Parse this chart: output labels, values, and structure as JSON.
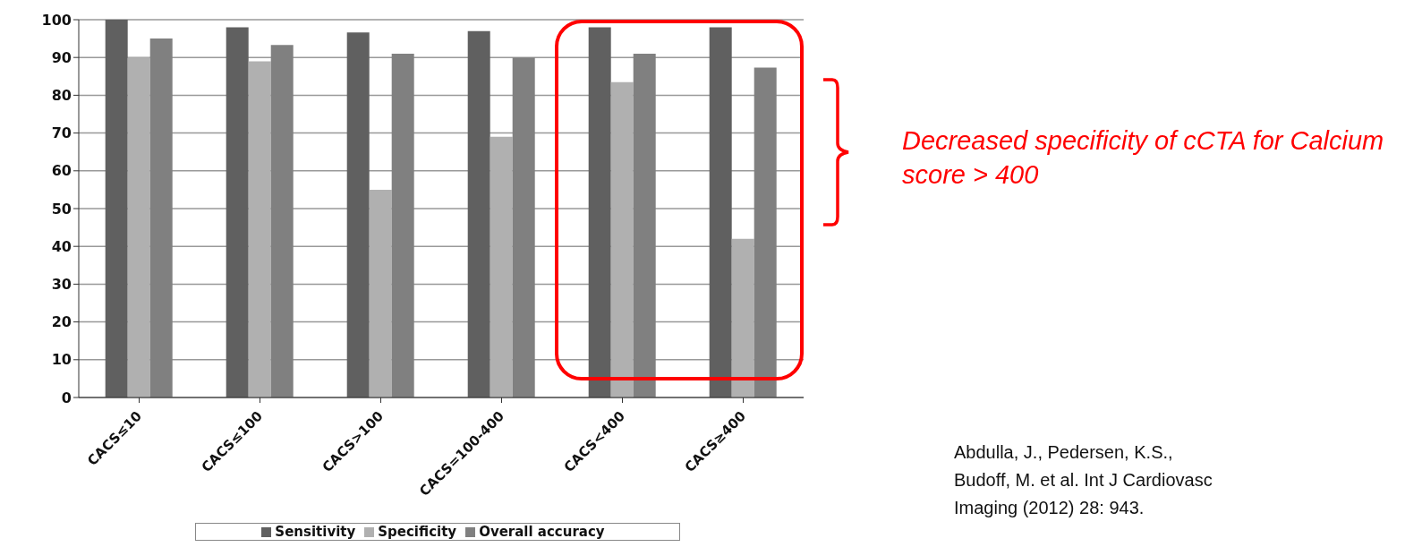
{
  "chart_data": {
    "type": "bar",
    "categories": [
      "CACS≤10",
      "CACS≤100",
      "CACS>100",
      "CACS=100-400",
      "CACS<400",
      "CACS≥400"
    ],
    "series": [
      {
        "name": "Sensitivity",
        "color": "#606060",
        "values": [
          100,
          98,
          96.6,
          97,
          98,
          98
        ]
      },
      {
        "name": "Specificity",
        "color": "#b0b0b0",
        "values": [
          90,
          89,
          55,
          69,
          83.5,
          42
        ]
      },
      {
        "name": "Overall accuracy",
        "color": "#808080",
        "values": [
          95,
          93.3,
          91,
          90,
          91,
          87.3
        ]
      }
    ],
    "ylim": [
      0,
      100
    ],
    "yticks": [
      0,
      10,
      20,
      30,
      40,
      50,
      60,
      70,
      80,
      90,
      100
    ],
    "grid": "y",
    "legend": "bottom",
    "annotations": [
      "Decreased specificity of cCTA for Calcium score > 400",
      "Abdulla, J., Pedersen, K.S., Budoff, M. et al. Int J Cardiovasc Imaging (2012) 28: 943."
    ]
  }
}
